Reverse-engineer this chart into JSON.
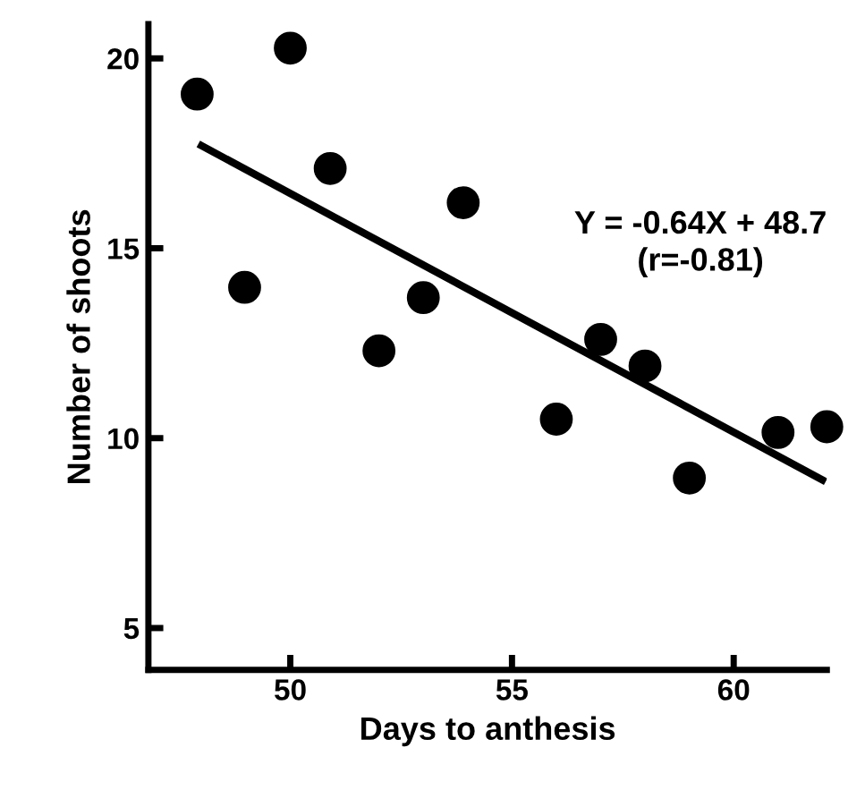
{
  "chart_data": {
    "type": "scatter",
    "xlabel": "Days to anthesis",
    "ylabel": "Number of shoots",
    "x": [
      47.9,
      48.97,
      50.0,
      50.9,
      52.0,
      53.0,
      53.9,
      56.0,
      57.0,
      58.0,
      59.0,
      61.0,
      62.1
    ],
    "series": [
      {
        "color": "#000000",
        "marker": "circle",
        "values": [
          19.06,
          13.97,
          20.27,
          17.1,
          12.3,
          13.7,
          16.2,
          10.5,
          12.6,
          11.9,
          8.95,
          10.15,
          10.3
        ]
      },
      {
        "type": "line",
        "color": "#000000",
        "marker": "none",
        "line_style": "solid",
        "x": [
          48.0,
          62.0
        ],
        "values": [
          17.7,
          8.9
        ]
      }
    ],
    "annotations": [
      "Y = -0.64X + 48.7\n(r=-0.81)"
    ],
    "grid": false,
    "xlim": [
      46.8,
      62.1
    ],
    "ylim": [
      3.9,
      20.9
    ],
    "xticks": [
      50,
      55,
      60
    ],
    "yticks": [
      5,
      10,
      15,
      20
    ]
  }
}
